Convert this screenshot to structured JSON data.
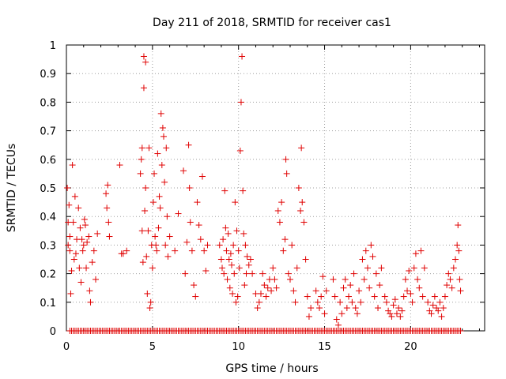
{
  "chart_data": {
    "type": "scatter",
    "title": "Day 211 of 2018, SRMTID for receiver cas1",
    "xlabel": "GPS time / hours",
    "ylabel": "SRMTID / TECUs",
    "xlim": [
      0,
      24.3
    ],
    "ylim": [
      0,
      1
    ],
    "xticks": [
      "0",
      "5",
      "10",
      "15",
      "20"
    ],
    "yticks": [
      "0",
      "0.1",
      "0.2",
      "0.3",
      "0.4",
      "0.5",
      "0.6",
      "0.7",
      "0.8",
      "0.9",
      "1"
    ],
    "marker": "+",
    "color": "#e00000",
    "series": [
      {
        "name": "SRMTID",
        "points": [
          [
            0.05,
            0.5
          ],
          [
            0.1,
            0.38
          ],
          [
            0.1,
            0.3
          ],
          [
            0.15,
            0.44
          ],
          [
            0.2,
            0.28
          ],
          [
            0.2,
            0.33
          ],
          [
            0.25,
            0.13
          ],
          [
            0.3,
            0.21
          ],
          [
            0.35,
            0.58
          ],
          [
            0.4,
            0.38
          ],
          [
            0.45,
            0.25
          ],
          [
            0.5,
            0.47
          ],
          [
            0.55,
            0.27
          ],
          [
            0.6,
            0.32
          ],
          [
            0.7,
            0.43
          ],
          [
            0.75,
            0.22
          ],
          [
            0.8,
            0.36
          ],
          [
            0.85,
            0.17
          ],
          [
            0.9,
            0.32
          ],
          [
            0.95,
            0.28
          ],
          [
            1.0,
            0.3
          ],
          [
            1.05,
            0.39
          ],
          [
            1.1,
            0.37
          ],
          [
            1.15,
            0.22
          ],
          [
            1.2,
            0.31
          ],
          [
            1.3,
            0.33
          ],
          [
            1.35,
            0.14
          ],
          [
            1.4,
            0.1
          ],
          [
            1.5,
            0.24
          ],
          [
            1.6,
            0.28
          ],
          [
            1.7,
            0.18
          ],
          [
            1.8,
            0.34
          ],
          [
            2.3,
            0.48
          ],
          [
            2.35,
            0.43
          ],
          [
            2.4,
            0.51
          ],
          [
            2.45,
            0.38
          ],
          [
            2.5,
            0.33
          ],
          [
            3.1,
            0.58
          ],
          [
            3.2,
            0.27
          ],
          [
            3.3,
            0.27
          ],
          [
            3.5,
            0.28
          ],
          [
            4.3,
            0.55
          ],
          [
            4.35,
            0.6
          ],
          [
            4.4,
            0.64
          ],
          [
            4.4,
            0.35
          ],
          [
            4.45,
            0.24
          ],
          [
            4.5,
            0.96
          ],
          [
            4.5,
            0.85
          ],
          [
            4.55,
            0.42
          ],
          [
            4.6,
            0.94
          ],
          [
            4.6,
            0.5
          ],
          [
            4.65,
            0.26
          ],
          [
            4.7,
            0.13
          ],
          [
            4.75,
            0.35
          ],
          [
            4.8,
            0.64
          ],
          [
            4.85,
            0.08
          ],
          [
            4.9,
            0.1
          ],
          [
            4.95,
            0.3
          ],
          [
            5.0,
            0.22
          ],
          [
            5.05,
            0.45
          ],
          [
            5.1,
            0.55
          ],
          [
            5.15,
            0.33
          ],
          [
            5.2,
            0.3
          ],
          [
            5.25,
            0.28
          ],
          [
            5.3,
            0.62
          ],
          [
            5.35,
            0.36
          ],
          [
            5.4,
            0.47
          ],
          [
            5.45,
            0.43
          ],
          [
            5.5,
            0.76
          ],
          [
            5.55,
            0.58
          ],
          [
            5.6,
            0.71
          ],
          [
            5.65,
            0.68
          ],
          [
            5.7,
            0.52
          ],
          [
            5.75,
            0.3
          ],
          [
            5.8,
            0.64
          ],
          [
            5.85,
            0.4
          ],
          [
            5.9,
            0.26
          ],
          [
            6.0,
            0.33
          ],
          [
            6.3,
            0.28
          ],
          [
            6.5,
            0.41
          ],
          [
            6.8,
            0.56
          ],
          [
            6.9,
            0.2
          ],
          [
            7.0,
            0.31
          ],
          [
            7.1,
            0.65
          ],
          [
            7.15,
            0.5
          ],
          [
            7.2,
            0.38
          ],
          [
            7.3,
            0.28
          ],
          [
            7.4,
            0.16
          ],
          [
            7.5,
            0.12
          ],
          [
            7.6,
            0.45
          ],
          [
            7.7,
            0.37
          ],
          [
            7.8,
            0.32
          ],
          [
            7.9,
            0.54
          ],
          [
            8.0,
            0.28
          ],
          [
            8.1,
            0.21
          ],
          [
            8.2,
            0.3
          ],
          [
            8.9,
            0.3
          ],
          [
            9.0,
            0.25
          ],
          [
            9.05,
            0.22
          ],
          [
            9.1,
            0.32
          ],
          [
            9.15,
            0.2
          ],
          [
            9.2,
            0.49
          ],
          [
            9.25,
            0.36
          ],
          [
            9.3,
            0.28
          ],
          [
            9.35,
            0.18
          ],
          [
            9.4,
            0.34
          ],
          [
            9.45,
            0.25
          ],
          [
            9.5,
            0.15
          ],
          [
            9.55,
            0.27
          ],
          [
            9.6,
            0.23
          ],
          [
            9.65,
            0.13
          ],
          [
            9.7,
            0.3
          ],
          [
            9.75,
            0.2
          ],
          [
            9.8,
            0.45
          ],
          [
            9.85,
            0.1
          ],
          [
            9.9,
            0.35
          ],
          [
            9.95,
            0.12
          ],
          [
            10.0,
            0.28
          ],
          [
            10.05,
            0.22
          ],
          [
            10.1,
            0.63
          ],
          [
            10.15,
            0.8
          ],
          [
            10.2,
            0.96
          ],
          [
            10.25,
            0.49
          ],
          [
            10.3,
            0.34
          ],
          [
            10.35,
            0.16
          ],
          [
            10.4,
            0.3
          ],
          [
            10.45,
            0.2
          ],
          [
            10.5,
            0.26
          ],
          [
            10.6,
            0.23
          ],
          [
            10.7,
            0.25
          ],
          [
            10.8,
            0.2
          ],
          [
            11.0,
            0.13
          ],
          [
            11.1,
            0.08
          ],
          [
            11.2,
            0.1
          ],
          [
            11.3,
            0.13
          ],
          [
            11.4,
            0.2
          ],
          [
            11.5,
            0.16
          ],
          [
            11.6,
            0.12
          ],
          [
            11.7,
            0.15
          ],
          [
            11.8,
            0.18
          ],
          [
            11.9,
            0.14
          ],
          [
            12.0,
            0.22
          ],
          [
            12.1,
            0.18
          ],
          [
            12.2,
            0.15
          ],
          [
            12.3,
            0.42
          ],
          [
            12.4,
            0.38
          ],
          [
            12.5,
            0.45
          ],
          [
            12.6,
            0.28
          ],
          [
            12.7,
            0.32
          ],
          [
            12.75,
            0.6
          ],
          [
            12.8,
            0.55
          ],
          [
            12.9,
            0.2
          ],
          [
            13.0,
            0.18
          ],
          [
            13.1,
            0.3
          ],
          [
            13.2,
            0.14
          ],
          [
            13.3,
            0.1
          ],
          [
            13.4,
            0.22
          ],
          [
            13.5,
            0.5
          ],
          [
            13.6,
            0.42
          ],
          [
            13.65,
            0.64
          ],
          [
            13.7,
            0.45
          ],
          [
            13.8,
            0.38
          ],
          [
            13.9,
            0.25
          ],
          [
            14.0,
            0.12
          ],
          [
            14.1,
            0.05
          ],
          [
            14.2,
            0.08
          ],
          [
            14.5,
            0.14
          ],
          [
            14.6,
            0.1
          ],
          [
            14.7,
            0.08
          ],
          [
            14.8,
            0.12
          ],
          [
            14.9,
            0.19
          ],
          [
            15.0,
            0.06
          ],
          [
            15.1,
            0.14
          ],
          [
            15.5,
            0.18
          ],
          [
            15.6,
            0.12
          ],
          [
            15.7,
            0.04
          ],
          [
            15.8,
            0.02
          ],
          [
            15.9,
            0.1
          ],
          [
            16.0,
            0.06
          ],
          [
            16.1,
            0.15
          ],
          [
            16.2,
            0.18
          ],
          [
            16.3,
            0.08
          ],
          [
            16.4,
            0.12
          ],
          [
            16.5,
            0.16
          ],
          [
            16.6,
            0.1
          ],
          [
            16.7,
            0.2
          ],
          [
            16.8,
            0.08
          ],
          [
            16.9,
            0.06
          ],
          [
            17.0,
            0.14
          ],
          [
            17.1,
            0.1
          ],
          [
            17.2,
            0.25
          ],
          [
            17.3,
            0.18
          ],
          [
            17.4,
            0.28
          ],
          [
            17.5,
            0.22
          ],
          [
            17.6,
            0.15
          ],
          [
            17.7,
            0.3
          ],
          [
            17.8,
            0.26
          ],
          [
            17.9,
            0.12
          ],
          [
            18.0,
            0.2
          ],
          [
            18.1,
            0.08
          ],
          [
            18.2,
            0.16
          ],
          [
            18.3,
            0.22
          ],
          [
            18.5,
            0.12
          ],
          [
            18.6,
            0.1
          ],
          [
            18.7,
            0.07
          ],
          [
            18.8,
            0.06
          ],
          [
            18.9,
            0.05
          ],
          [
            19.0,
            0.09
          ],
          [
            19.1,
            0.11
          ],
          [
            19.2,
            0.06
          ],
          [
            19.3,
            0.08
          ],
          [
            19.4,
            0.05
          ],
          [
            19.5,
            0.07
          ],
          [
            19.6,
            0.12
          ],
          [
            19.7,
            0.18
          ],
          [
            19.8,
            0.14
          ],
          [
            19.9,
            0.21
          ],
          [
            20.0,
            0.13
          ],
          [
            20.1,
            0.1
          ],
          [
            20.2,
            0.22
          ],
          [
            20.3,
            0.27
          ],
          [
            20.4,
            0.18
          ],
          [
            20.5,
            0.15
          ],
          [
            20.6,
            0.28
          ],
          [
            20.7,
            0.12
          ],
          [
            20.8,
            0.22
          ],
          [
            21.0,
            0.1
          ],
          [
            21.1,
            0.07
          ],
          [
            21.2,
            0.06
          ],
          [
            21.3,
            0.09
          ],
          [
            21.4,
            0.12
          ],
          [
            21.5,
            0.08
          ],
          [
            21.6,
            0.07
          ],
          [
            21.7,
            0.1
          ],
          [
            21.8,
            0.05
          ],
          [
            21.9,
            0.08
          ],
          [
            22.0,
            0.12
          ],
          [
            22.1,
            0.16
          ],
          [
            22.2,
            0.2
          ],
          [
            22.3,
            0.18
          ],
          [
            22.4,
            0.15
          ],
          [
            22.5,
            0.22
          ],
          [
            22.6,
            0.25
          ],
          [
            22.7,
            0.3
          ],
          [
            22.75,
            0.37
          ],
          [
            22.8,
            0.28
          ],
          [
            22.85,
            0.18
          ],
          [
            22.9,
            0.14
          ]
        ]
      },
      {
        "name": "zero baseline",
        "x_range": [
          0.2,
          22.9
        ],
        "step": 0.1,
        "value": 0
      }
    ]
  }
}
